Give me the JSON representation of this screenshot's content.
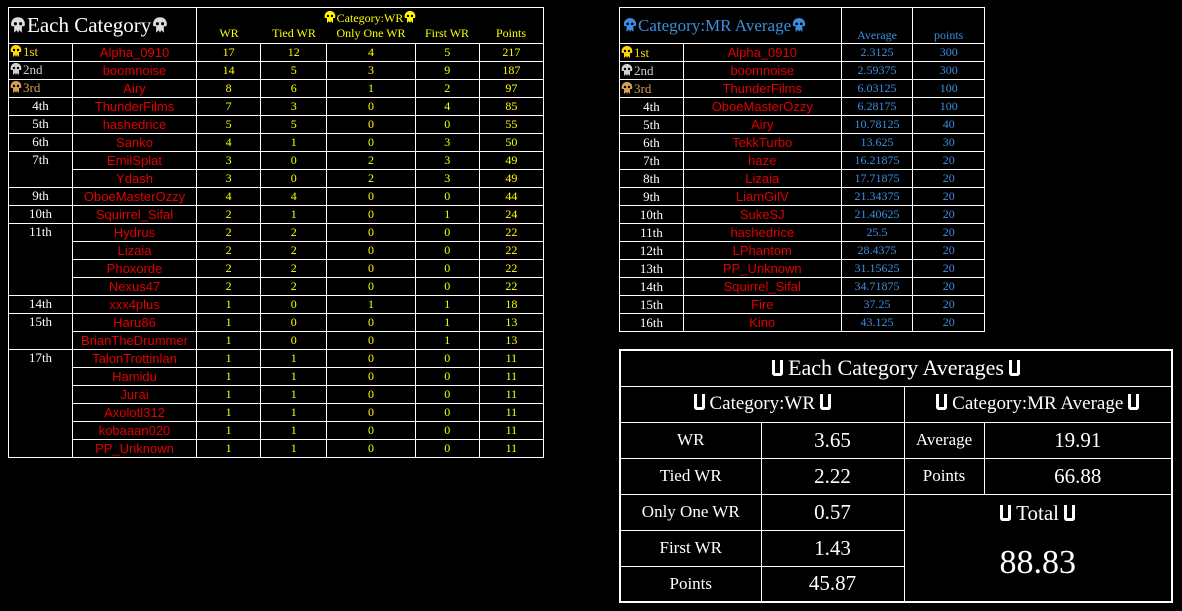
{
  "left_table": {
    "title": "Each Category",
    "group_header": "Category:WR",
    "columns": [
      "WR",
      "Tied WR",
      "Only One WR",
      "First WR",
      "Points"
    ],
    "rows": [
      {
        "rank": "1st",
        "name": "Alpha_0910",
        "wr": "17",
        "tied": "12",
        "only": "4",
        "first": "5",
        "points": "217",
        "medal": "gold"
      },
      {
        "rank": "2nd",
        "name": "boomnoise",
        "wr": "14",
        "tied": "5",
        "only": "3",
        "first": "9",
        "points": "187",
        "medal": "silver"
      },
      {
        "rank": "3rd",
        "name": "Airy",
        "wr": "8",
        "tied": "6",
        "only": "1",
        "first": "2",
        "points": "97",
        "medal": "bronze"
      },
      {
        "rank": "4th",
        "name": "ThunderFilms",
        "wr": "7",
        "tied": "3",
        "only": "0",
        "first": "4",
        "points": "85"
      },
      {
        "rank": "5th",
        "name": "hashedrice",
        "wr": "5",
        "tied": "5",
        "only": "0",
        "first": "0",
        "points": "55"
      },
      {
        "rank": "6th",
        "name": "Sanko",
        "wr": "4",
        "tied": "1",
        "only": "0",
        "first": "3",
        "points": "50"
      },
      {
        "rank": "7th",
        "name": "EmilSplat",
        "wr": "3",
        "tied": "0",
        "only": "2",
        "first": "3",
        "points": "49"
      },
      {
        "rank": "",
        "name": "Ydash",
        "wr": "3",
        "tied": "0",
        "only": "2",
        "first": "3",
        "points": "49"
      },
      {
        "rank": "9th",
        "name": "OboeMasterOzzy",
        "wr": "4",
        "tied": "4",
        "only": "0",
        "first": "0",
        "points": "44"
      },
      {
        "rank": "10th",
        "name": "Squirrel_Sifal",
        "wr": "2",
        "tied": "1",
        "only": "0",
        "first": "1",
        "points": "24"
      },
      {
        "rank": "11th",
        "name": "Hydrus",
        "wr": "2",
        "tied": "2",
        "only": "0",
        "first": "0",
        "points": "22"
      },
      {
        "rank": "",
        "name": "Lizaia",
        "wr": "2",
        "tied": "2",
        "only": "0",
        "first": "0",
        "points": "22"
      },
      {
        "rank": "",
        "name": "Phoxorde",
        "wr": "2",
        "tied": "2",
        "only": "0",
        "first": "0",
        "points": "22"
      },
      {
        "rank": "",
        "name": "Nexus47",
        "wr": "2",
        "tied": "2",
        "only": "0",
        "first": "0",
        "points": "22"
      },
      {
        "rank": "14th",
        "name": "xxx4plus",
        "wr": "1",
        "tied": "0",
        "only": "1",
        "first": "1",
        "points": "18"
      },
      {
        "rank": "15th",
        "name": "Haru86",
        "wr": "1",
        "tied": "0",
        "only": "0",
        "first": "1",
        "points": "13"
      },
      {
        "rank": "",
        "name": "BrianTheDrummer",
        "wr": "1",
        "tied": "0",
        "only": "0",
        "first": "1",
        "points": "13"
      },
      {
        "rank": "17th",
        "name": "TalonTrottinlan",
        "wr": "1",
        "tied": "1",
        "only": "0",
        "first": "0",
        "points": "11"
      },
      {
        "rank": "",
        "name": "Hamidu",
        "wr": "1",
        "tied": "1",
        "only": "0",
        "first": "0",
        "points": "11"
      },
      {
        "rank": "",
        "name": "Jurai",
        "wr": "1",
        "tied": "1",
        "only": "0",
        "first": "0",
        "points": "11"
      },
      {
        "rank": "",
        "name": "Axolotl312",
        "wr": "1",
        "tied": "1",
        "only": "0",
        "first": "0",
        "points": "11"
      },
      {
        "rank": "",
        "name": "kobaaan020",
        "wr": "1",
        "tied": "1",
        "only": "0",
        "first": "0",
        "points": "11"
      },
      {
        "rank": "",
        "name": "PP_Unknown",
        "wr": "1",
        "tied": "1",
        "only": "0",
        "first": "0",
        "points": "11"
      }
    ]
  },
  "right_table": {
    "title": "Category:MR Average",
    "columns": [
      "Average",
      "points"
    ],
    "rows": [
      {
        "rank": "1st",
        "name": "Alpha_0910",
        "avg": "2.3125",
        "points": "300",
        "medal": "gold"
      },
      {
        "rank": "2nd",
        "name": "boomnoise",
        "avg": "2.59375",
        "points": "300",
        "medal": "silver"
      },
      {
        "rank": "3rd",
        "name": "ThunderFilms",
        "avg": "6.03125",
        "points": "100",
        "medal": "bronze"
      },
      {
        "rank": "4th",
        "name": "OboeMasterOzzy",
        "avg": "6.28175",
        "points": "100"
      },
      {
        "rank": "5th",
        "name": "Airy",
        "avg": "10.78125",
        "points": "40"
      },
      {
        "rank": "6th",
        "name": "TekkTurbo",
        "avg": "13.625",
        "points": "30"
      },
      {
        "rank": "7th",
        "name": "haze",
        "avg": "16.21875",
        "points": "20"
      },
      {
        "rank": "8th",
        "name": "Lizaia",
        "avg": "17.71875",
        "points": "20"
      },
      {
        "rank": "9th",
        "name": "LiamGilV",
        "avg": "21.34375",
        "points": "20"
      },
      {
        "rank": "10th",
        "name": "SukeSJ",
        "avg": "21.40625",
        "points": "20"
      },
      {
        "rank": "11th",
        "name": "hashedrice",
        "avg": "25.5",
        "points": "20"
      },
      {
        "rank": "12th",
        "name": "LPhantom",
        "avg": "28.4375",
        "points": "20"
      },
      {
        "rank": "13th",
        "name": "PP_Unknown",
        "avg": "31.15625",
        "points": "20"
      },
      {
        "rank": "14th",
        "name": "Squirrel_Sifal",
        "avg": "34.71875",
        "points": "20"
      },
      {
        "rank": "15th",
        "name": "Fire",
        "avg": "37.25",
        "points": "20"
      },
      {
        "rank": "16th",
        "name": "Kino",
        "avg": "43.125",
        "points": "20"
      }
    ]
  },
  "averages": {
    "title": "Each Category Averages",
    "wr_title": "Category:WR",
    "mr_title": "Category:MR Average",
    "wr_rows": [
      {
        "label": "WR",
        "value": "3.65"
      },
      {
        "label": "Tied WR",
        "value": "2.22"
      },
      {
        "label": "Only One WR",
        "value": "0.57"
      },
      {
        "label": "First WR",
        "value": "1.43"
      },
      {
        "label": "Points",
        "value": "45.87"
      }
    ],
    "mr_rows": [
      {
        "label": "Average",
        "value": "19.91"
      },
      {
        "label": "Points",
        "value": "66.88"
      }
    ],
    "total_title": "Total",
    "total_value": "88.83"
  },
  "colors": {
    "background": "#000000",
    "red": "#e00000",
    "yellow": "#ffff00",
    "blue": "#3a8fe0",
    "gold": "#ffd700",
    "silver": "#d0d0d0",
    "bronze": "#d4a050"
  }
}
